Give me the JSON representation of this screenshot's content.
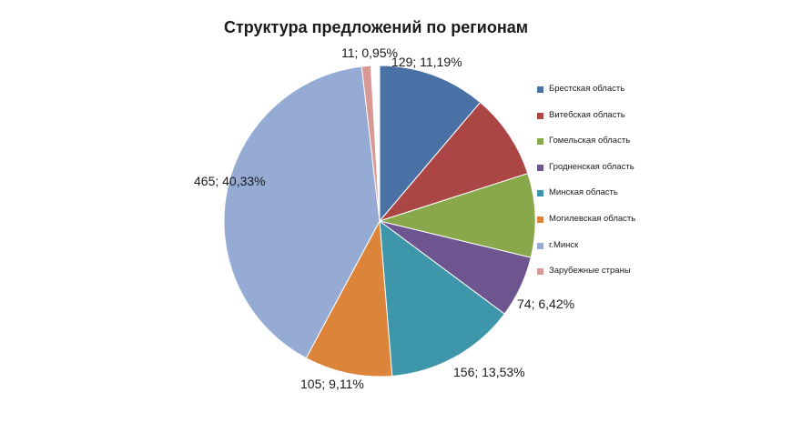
{
  "chart_data": {
    "type": "pie",
    "title": "Структура предложений по регионам",
    "legend_position": "right",
    "slices": [
      {
        "category": "Брестская область",
        "value": 129,
        "percent": "11,19%",
        "label": "129; 11,19%",
        "color": "#4a71a6"
      },
      {
        "category": "Витебская область",
        "value": null,
        "percent": null,
        "label": "",
        "color": "#ac4644"
      },
      {
        "category": "Гомельская область",
        "value": null,
        "percent": null,
        "label": "",
        "color": "#89a84c"
      },
      {
        "category": "Гродненская область",
        "value": 74,
        "percent": "6,42%",
        "label": "74; 6,42%",
        "color": "#6e5590"
      },
      {
        "category": "Минская область",
        "value": 156,
        "percent": "13,53%",
        "label": "156; 13,53%",
        "color": "#3d96a9"
      },
      {
        "category": "Могилевская область",
        "value": 105,
        "percent": "9,11%",
        "label": "105; 9,11%",
        "color": "#dc843a"
      },
      {
        "category": "г.Минск",
        "value": 465,
        "percent": "40,33%",
        "label": "465; 40,33%",
        "color": "#95abd3"
      },
      {
        "category": "Зарубежные страны",
        "value": 11,
        "percent": "0,95%",
        "label": "11; 0,95%",
        "color": "#d89996"
      }
    ],
    "slice_fractions": [
      0.1119,
      0.0886,
      0.0872,
      0.0642,
      0.1353,
      0.0911,
      0.4033,
      0.0095
    ]
  }
}
